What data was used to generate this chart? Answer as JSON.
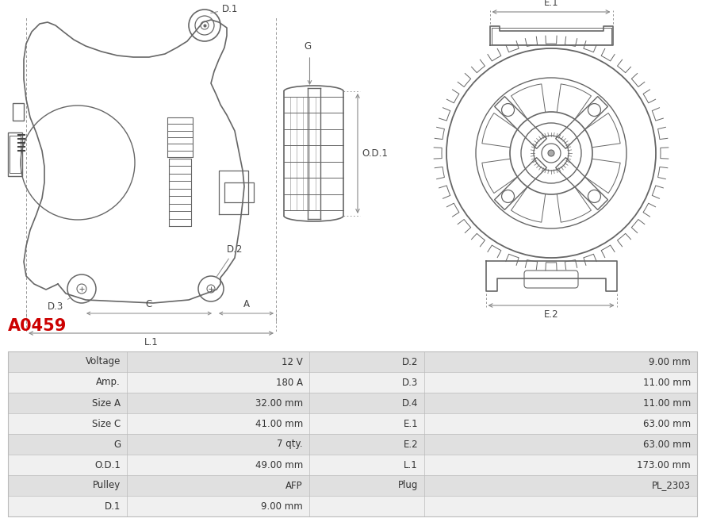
{
  "title": "A0459",
  "title_color": "#cc0000",
  "background_color": "#ffffff",
  "table_rows": [
    {
      "left_label": "Voltage",
      "left_value": "12 V",
      "right_label": "D.2",
      "right_value": "9.00 mm"
    },
    {
      "left_label": "Amp.",
      "left_value": "180 A",
      "right_label": "D.3",
      "right_value": "11.00 mm"
    },
    {
      "left_label": "Size A",
      "left_value": "32.00 mm",
      "right_label": "D.4",
      "right_value": "11.00 mm"
    },
    {
      "left_label": "Size C",
      "left_value": "41.00 mm",
      "right_label": "E.1",
      "right_value": "63.00 mm"
    },
    {
      "left_label": "G",
      "left_value": "7 qty.",
      "right_label": "E.2",
      "right_value": "63.00 mm"
    },
    {
      "left_label": "O.D.1",
      "left_value": "49.00 mm",
      "right_label": "L.1",
      "right_value": "173.00 mm"
    },
    {
      "left_label": "Pulley",
      "left_value": "AFP",
      "right_label": "Plug",
      "right_value": "PL_2303"
    },
    {
      "left_label": "D.1",
      "left_value": "9.00 mm",
      "right_label": "",
      "right_value": ""
    }
  ],
  "row_bg_odd": "#e0e0e0",
  "row_bg_even": "#f0f0f0",
  "row_text_color": "#333333",
  "table_border_color": "#bbbbbb",
  "lc": "#666666",
  "dc": "#888888"
}
